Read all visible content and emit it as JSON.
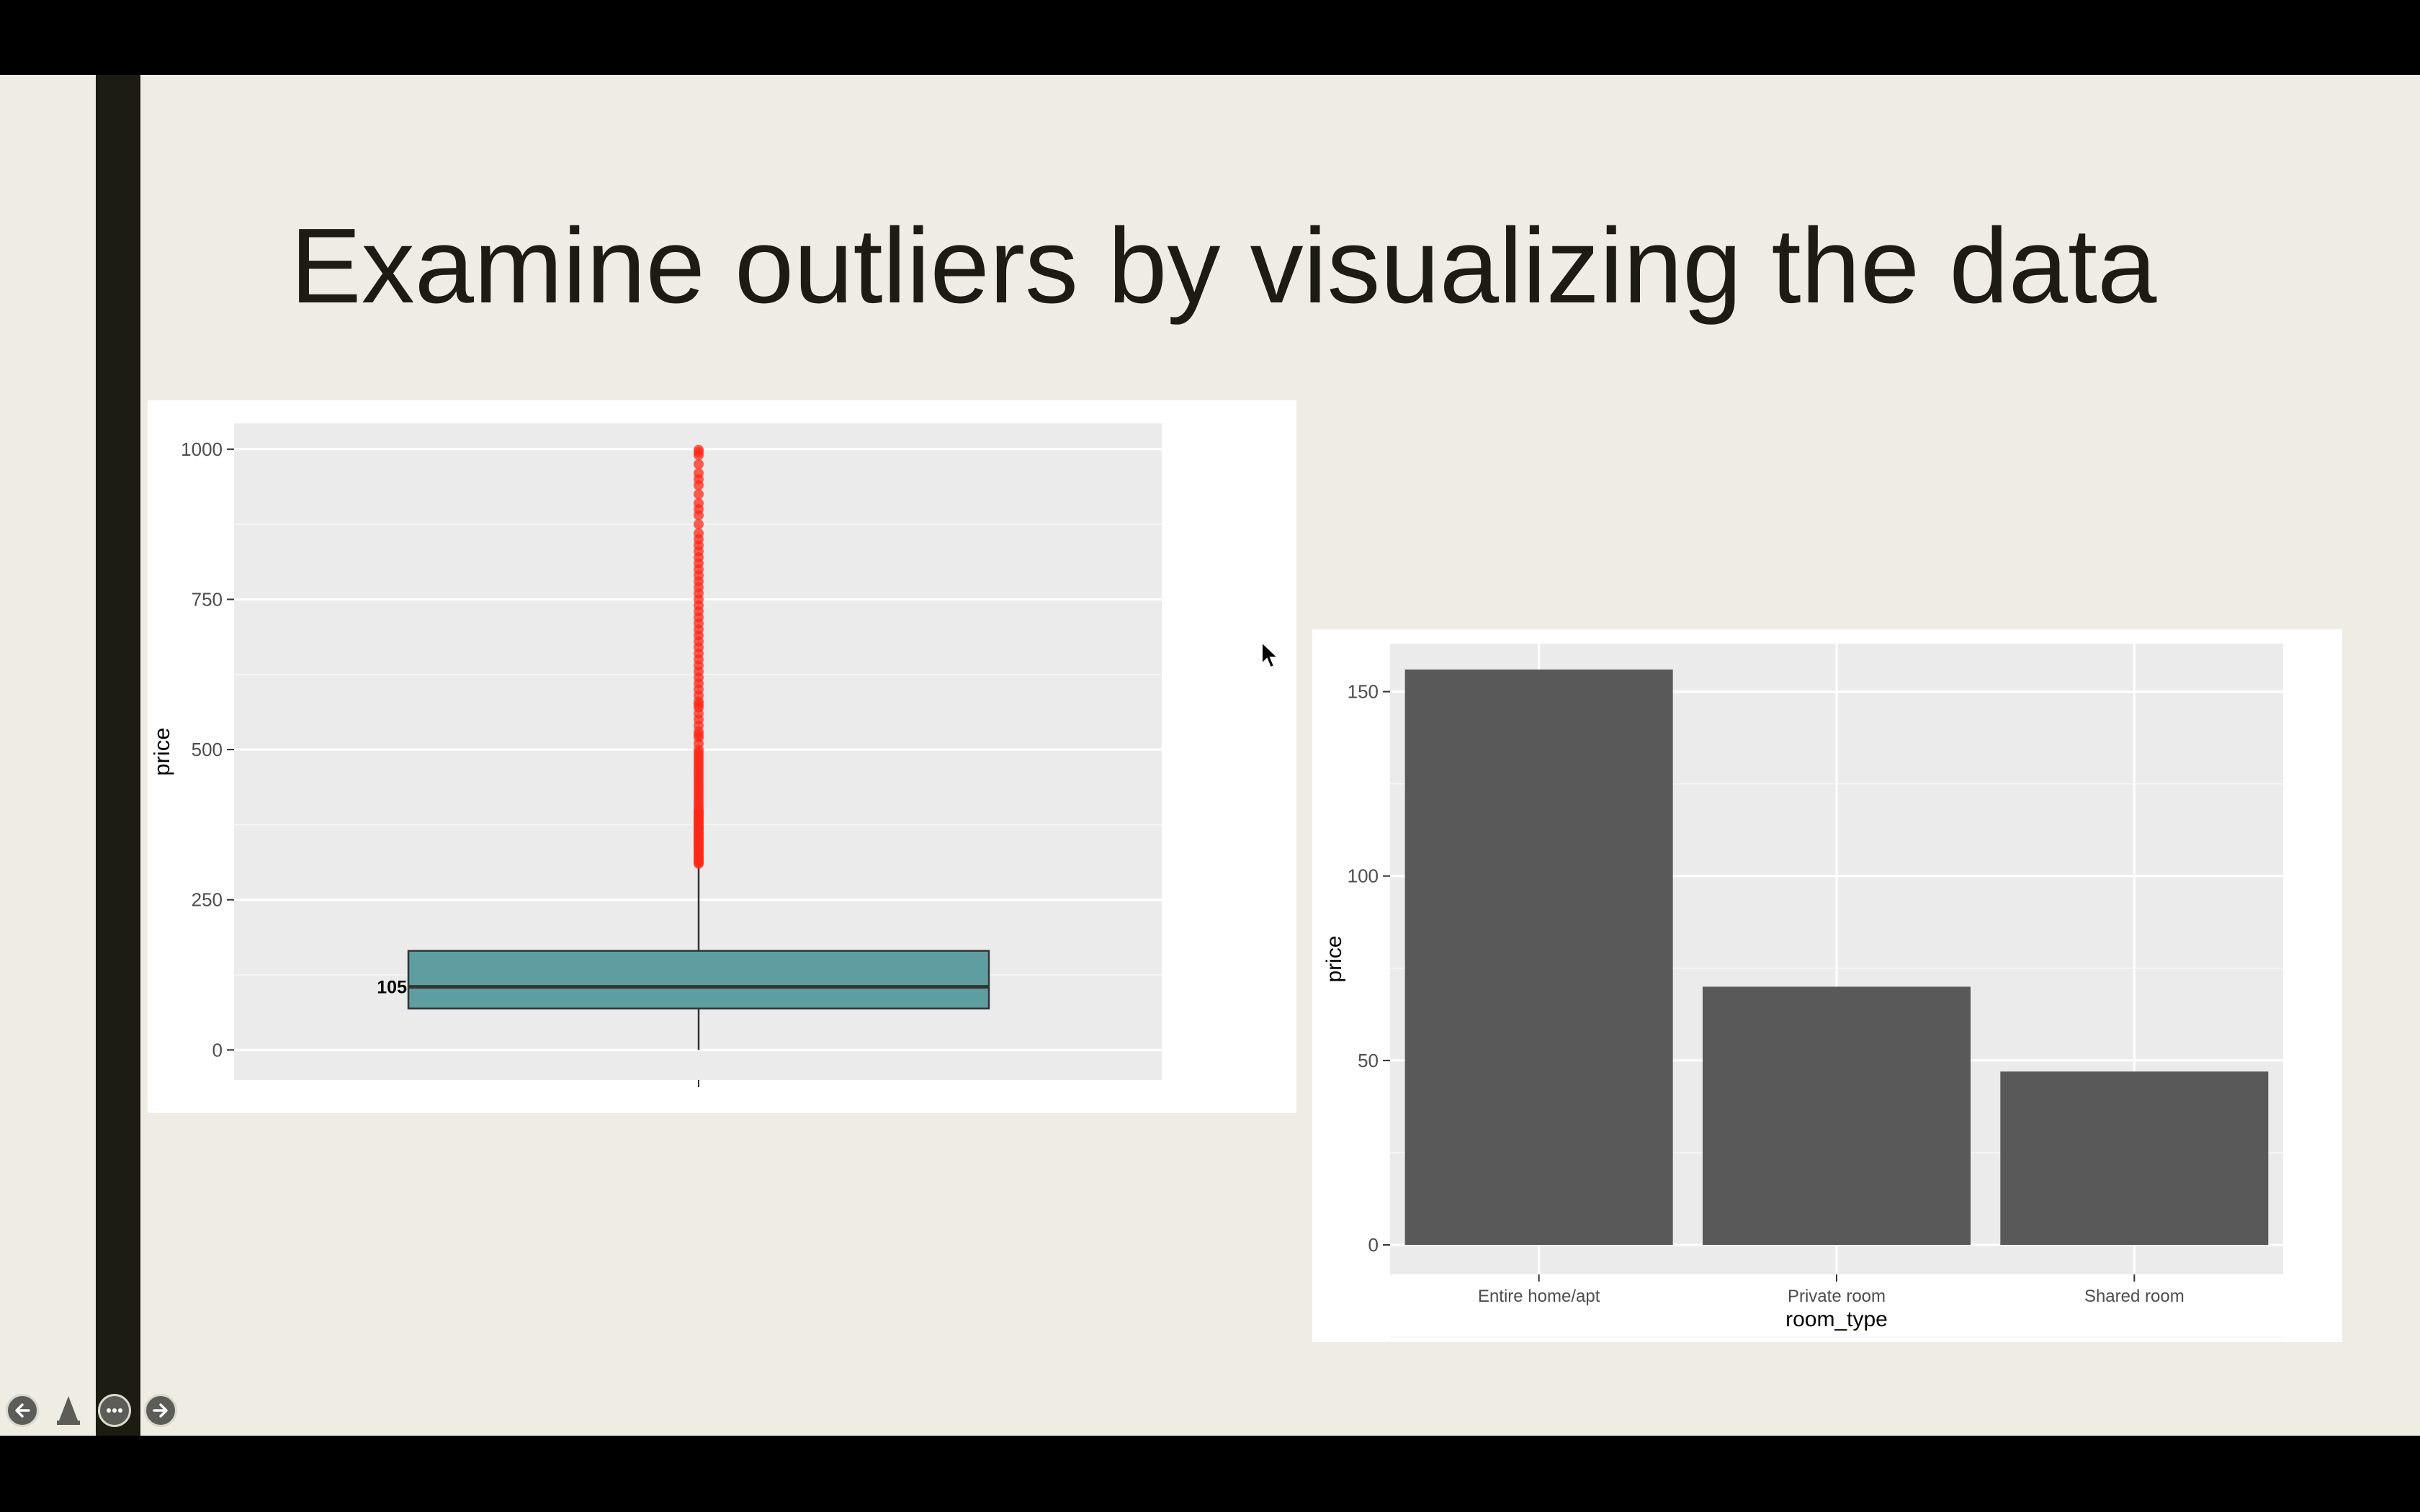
{
  "slide": {
    "title": "Examine outliers by visualizing the data"
  },
  "toolbar": {
    "previous": "previous-slide",
    "pen": "pen-tool",
    "more": "more-options",
    "next": "next-slide"
  },
  "colors": {
    "slide_bg": "#efece3",
    "accent_bar": "#1c1c12",
    "plot_bg": "#ebebeb",
    "box_fill": "#5f9ea0",
    "outlier": "#ff2a1a",
    "bar_fill": "#595959"
  },
  "chart_data": [
    {
      "type": "box",
      "title": "",
      "xlabel": "",
      "ylabel": "price",
      "ylim": [
        -50,
        1043
      ],
      "yticks": [
        0,
        250,
        500,
        750,
        1000
      ],
      "ytick_labels": [
        "0",
        "250",
        "500",
        "750",
        "1000"
      ],
      "grid": true,
      "box": {
        "min": 0,
        "q1": 69,
        "median": 105,
        "q3": 165,
        "whisker_high": 309
      },
      "median_label": "105",
      "outliers": [
        310,
        312,
        314,
        316,
        318,
        320,
        322,
        325,
        328,
        330,
        333,
        335,
        338,
        340,
        343,
        345,
        348,
        350,
        352,
        355,
        358,
        360,
        362,
        365,
        368,
        370,
        372,
        375,
        378,
        380,
        383,
        385,
        388,
        390,
        393,
        395,
        398,
        400,
        405,
        410,
        415,
        420,
        425,
        430,
        435,
        440,
        445,
        450,
        455,
        460,
        465,
        470,
        475,
        480,
        485,
        490,
        495,
        500,
        510,
        520,
        525,
        530,
        540,
        550,
        560,
        570,
        575,
        580,
        590,
        600,
        610,
        620,
        630,
        640,
        650,
        660,
        670,
        680,
        690,
        700,
        710,
        720,
        730,
        740,
        750,
        760,
        770,
        780,
        790,
        800,
        810,
        820,
        830,
        840,
        850,
        860,
        875,
        890,
        900,
        910,
        925,
        940,
        950,
        960,
        975,
        990,
        995,
        999
      ],
      "fill": "#5f9ea0",
      "outlier_color": "#ff2a1a"
    },
    {
      "type": "bar",
      "title": "",
      "categories": [
        "Entire home/apt",
        "Private room",
        "Shared room"
      ],
      "values": [
        156,
        70,
        47
      ],
      "xlabel": "room_type",
      "ylabel": "price",
      "ylim": [
        -8,
        163
      ],
      "yticks": [
        0,
        50,
        100,
        150
      ],
      "ytick_labels": [
        "0",
        "50",
        "100",
        "150"
      ],
      "grid": true,
      "fill": "#595959"
    }
  ]
}
